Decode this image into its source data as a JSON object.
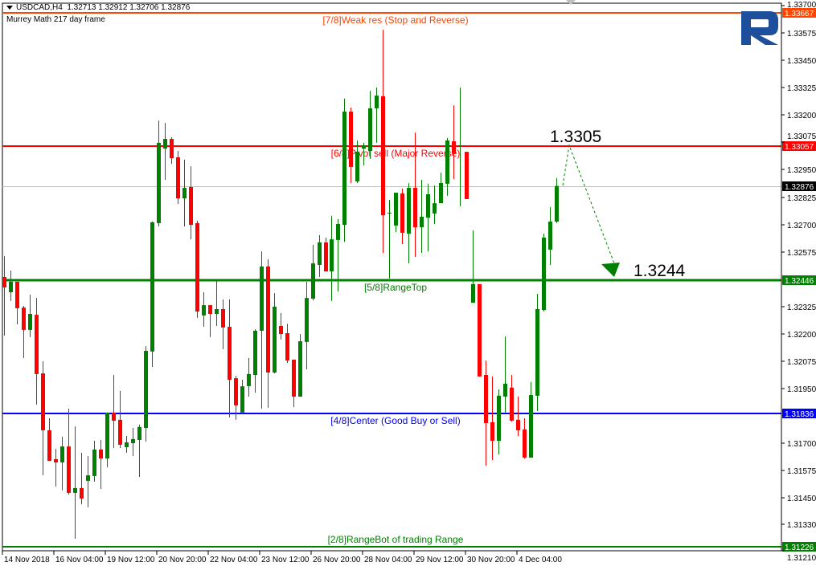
{
  "header": {
    "symbol_line": "USDCAD,H4  1.32713 1.32912 1.32706 1.32876",
    "indicator": "Murrey Math 217 day frame"
  },
  "colors": {
    "bull": "#008000",
    "bear": "#ff0000",
    "weak_res": "#ff4500",
    "pivot": "#ff0000",
    "range_top": "#008000",
    "center": "#0000ff",
    "range_bot": "#008000",
    "current": "#000000",
    "logo": "#1e4f9c"
  },
  "chart_data": {
    "type": "candlestick",
    "symbol": "USDCAD",
    "timeframe": "H4",
    "ylim": [
      1.3121,
      1.337
    ],
    "grid": false,
    "y_ticks": [
      "1.33700",
      "1.33575",
      "1.33450",
      "1.33325",
      "1.33200",
      "1.33075",
      "1.32950",
      "1.32825",
      "1.32700",
      "1.32575",
      "1.32325",
      "1.32200",
      "1.32075",
      "1.31950",
      "1.31700",
      "1.31575",
      "1.31450",
      "1.31330",
      "1.31210"
    ],
    "x_ticks": [
      "14 Nov 2018",
      "16 Nov 04:00",
      "19 Nov 12:00",
      "20 Nov 20:00",
      "22 Nov 04:00",
      "23 Nov 12:00",
      "26 Nov 20:00",
      "28 Nov 04:00",
      "29 Nov 12:00",
      "30 Nov 20:00",
      "4 Dec 04:00"
    ],
    "candles_ohlc": [
      [
        1.3246,
        1.32555,
        1.32192,
        1.32412
      ],
      [
        1.3239,
        1.32489,
        1.3235,
        1.32438
      ],
      [
        1.32438,
        1.32438,
        1.32243,
        1.32317
      ],
      [
        1.3232,
        1.32328,
        1.32089,
        1.32218
      ],
      [
        1.32218,
        1.32379,
        1.32185,
        1.32291
      ],
      [
        1.32287,
        1.32364,
        1.31876,
        1.32016
      ],
      [
        1.32019,
        1.32074,
        1.31553,
        1.31759
      ],
      [
        1.31759,
        1.31814,
        1.31619,
        1.31619
      ],
      [
        1.31627,
        1.31674,
        1.31502,
        1.31612
      ],
      [
        1.31612,
        1.3173,
        1.31484,
        1.31685
      ],
      [
        1.31685,
        1.31858,
        1.31465,
        1.31473
      ],
      [
        1.31473,
        1.31777,
        1.31263,
        1.31495
      ],
      [
        1.31495,
        1.31656,
        1.31421,
        1.31447
      ],
      [
        1.31528,
        1.31641,
        1.31407,
        1.31553
      ],
      [
        1.3155,
        1.31711,
        1.31524,
        1.31671
      ],
      [
        1.31671,
        1.31715,
        1.31491,
        1.3163
      ],
      [
        1.3163,
        1.3184,
        1.3159,
        1.3184
      ],
      [
        1.3184,
        1.32012,
        1.31678,
        1.31803
      ],
      [
        1.31807,
        1.31939,
        1.31678,
        1.31693
      ],
      [
        1.31682,
        1.31733,
        1.31656,
        1.31704
      ],
      [
        1.317,
        1.3177,
        1.31641,
        1.31719
      ],
      [
        1.31715,
        1.31785,
        1.31546,
        1.31774
      ],
      [
        1.3177,
        1.32144,
        1.31708,
        1.32122
      ],
      [
        1.32119,
        1.32713,
        1.32049,
        1.3271
      ],
      [
        1.32706,
        1.33175,
        1.32691,
        1.33073
      ],
      [
        1.33047,
        1.33164,
        1.32904,
        1.33091
      ],
      [
        1.33091,
        1.33098,
        1.32977,
        1.33003
      ],
      [
        1.33007,
        1.33036,
        1.32794,
        1.32819
      ],
      [
        1.32819,
        1.32996,
        1.32691,
        1.32867
      ],
      [
        1.32871,
        1.32966,
        1.32632,
        1.32698
      ],
      [
        1.32706,
        1.32717,
        1.32273,
        1.32302
      ],
      [
        1.32284,
        1.3239,
        1.32232,
        1.32331
      ],
      [
        1.32331,
        1.32331,
        1.32185,
        1.32291
      ],
      [
        1.32291,
        1.32445,
        1.32236,
        1.32313
      ],
      [
        1.32313,
        1.32357,
        1.3213,
        1.32229
      ],
      [
        1.32232,
        1.32357,
        1.31818,
        1.3199
      ],
      [
        1.31997,
        1.32008,
        1.31807,
        1.31873
      ],
      [
        1.3184,
        1.3199,
        1.31832,
        1.3196
      ],
      [
        1.31961,
        1.32089,
        1.31913,
        1.32016
      ],
      [
        1.32012,
        1.32221,
        1.31931,
        1.32214
      ],
      [
        1.32214,
        1.32577,
        1.31858,
        1.32508
      ],
      [
        1.32508,
        1.32541,
        1.31862,
        1.32023
      ],
      [
        1.32023,
        1.32386,
        1.32019,
        1.32324
      ],
      [
        1.32236,
        1.32295,
        1.32174,
        1.32199
      ],
      [
        1.32203,
        1.32246,
        1.32067,
        1.32078
      ],
      [
        1.32082,
        1.32082,
        1.31865,
        1.31913
      ],
      [
        1.31913,
        1.32199,
        1.31913,
        1.32166
      ],
      [
        1.32163,
        1.32438,
        1.32038,
        1.32364
      ],
      [
        1.32361,
        1.32607,
        1.32353,
        1.32522
      ],
      [
        1.32515,
        1.32651,
        1.3246,
        1.32618
      ],
      [
        1.32618,
        1.3264,
        1.32485,
        1.32485
      ],
      [
        1.32485,
        1.32739,
        1.3235,
        1.32632
      ],
      [
        1.32629,
        1.32724,
        1.32394,
        1.32702
      ],
      [
        1.32698,
        1.33275,
        1.32621,
        1.33216
      ],
      [
        1.33216,
        1.33234,
        1.32889,
        1.32963
      ],
      [
        1.32897,
        1.33084,
        1.32889,
        1.33032
      ],
      [
        1.33047,
        1.33073,
        1.3297,
        1.33058
      ],
      [
        1.33036,
        1.33311,
        1.33,
        1.33231
      ],
      [
        1.33231,
        1.33326,
        1.33073,
        1.33289
      ],
      [
        1.33286,
        1.3359,
        1.3257,
        1.32742
      ],
      [
        1.3275,
        1.32812,
        1.32453,
        1.32754
      ],
      [
        1.32695,
        1.32845,
        1.32665,
        1.32845
      ],
      [
        1.32842,
        1.32864,
        1.3261,
        1.32662
      ],
      [
        1.32658,
        1.32889,
        1.32522,
        1.32867
      ],
      [
        1.32867,
        1.3312,
        1.32552,
        1.32687
      ],
      [
        1.32687,
        1.32904,
        1.3257,
        1.32735
      ],
      [
        1.32731,
        1.32886,
        1.32577,
        1.32838
      ],
      [
        1.3275,
        1.32878,
        1.32702,
        1.32797
      ],
      [
        1.32797,
        1.32937,
        1.32797,
        1.32889
      ],
      [
        1.32886,
        1.33095,
        1.32831,
        1.33084
      ],
      [
        1.3308,
        1.33245,
        1.32908,
        1.33025
      ],
      [
        1.33058,
        1.33326,
        1.32783,
        1.33062
      ],
      [
        1.33032,
        1.33032,
        1.32816,
        1.32816
      ],
      [
        1.32342,
        1.32673,
        1.32342,
        1.32427
      ],
      [
        1.32427,
        1.32427,
        1.32005,
        1.32005
      ],
      [
        1.32012,
        1.32078,
        1.31597,
        1.31792
      ],
      [
        1.31796,
        1.32005,
        1.31623,
        1.31711
      ],
      [
        1.31711,
        1.31946,
        1.31649,
        1.31917
      ],
      [
        1.31913,
        1.32188,
        1.3184,
        1.31972
      ],
      [
        1.31954,
        1.32012,
        1.31799,
        1.31803
      ],
      [
        1.31807,
        1.31913,
        1.31733,
        1.31759
      ],
      [
        1.31763,
        1.31814,
        1.3163,
        1.31634
      ],
      [
        1.31634,
        1.3198,
        1.31634,
        1.3192
      ],
      [
        1.31917,
        1.32383,
        1.31847,
        1.32313
      ],
      [
        1.32309,
        1.32658,
        1.32302,
        1.3264
      ],
      [
        1.32585,
        1.32779,
        1.32515,
        1.32713
      ],
      [
        1.32713,
        1.32912,
        1.32706,
        1.32876
      ]
    ],
    "levels": [
      {
        "key": "weak_res",
        "price": 1.33667,
        "price_label": "1.33667",
        "text": "[7/8]Weak res (Stop and Reverse)"
      },
      {
        "key": "pivot",
        "price": 1.33057,
        "price_label": "1.33057",
        "text": "[6/8]Pivot sell (Major Reverse)"
      },
      {
        "key": "range_top",
        "price": 1.32446,
        "price_label": "1.32446",
        "text": "[5/8]RangeTop"
      },
      {
        "key": "center",
        "price": 1.31836,
        "price_label": "1.31836",
        "text": "[4/8]Center (Good Buy or Sell)"
      },
      {
        "key": "range_bot",
        "price": 1.31226,
        "price_label": "1.31226",
        "text": "[2/8]RangeBot of trading Range"
      }
    ],
    "current_price": {
      "price": 1.32876,
      "label": "1.32876"
    },
    "annotations": {
      "target_high": "1.3305",
      "target_low": "1.3244"
    }
  }
}
